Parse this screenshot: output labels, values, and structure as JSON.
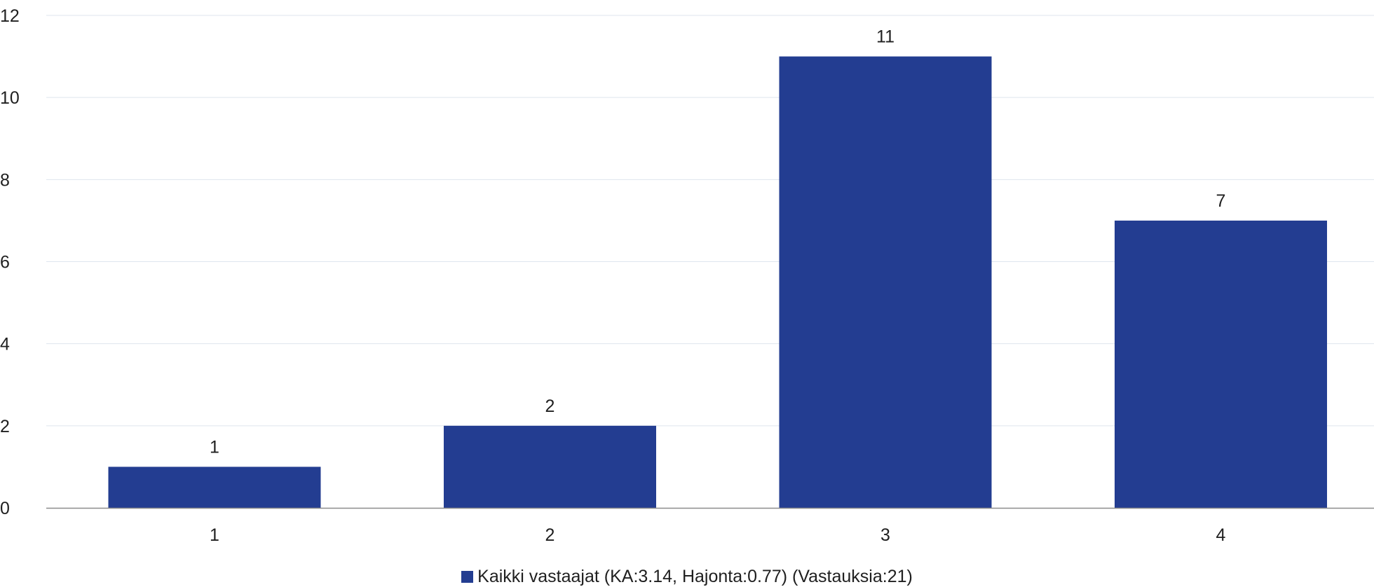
{
  "chart_data": {
    "type": "bar",
    "categories": [
      "1",
      "2",
      "3",
      "4"
    ],
    "series": [
      {
        "name": "Kaikki vastaajat (KA:3.14, Hajonta:0.77) (Vastauksia:21)",
        "values": [
          1,
          2,
          11,
          7
        ],
        "color": "#233d91"
      }
    ],
    "data_labels": [
      "1",
      "2",
      "11",
      "7"
    ],
    "y_ticks": [
      "0",
      "2",
      "4",
      "6",
      "8",
      "10",
      "12"
    ],
    "ylim": [
      0,
      12
    ],
    "grid": true,
    "legend_position": "bottom",
    "title": "",
    "xlabel": "",
    "ylabel": ""
  }
}
